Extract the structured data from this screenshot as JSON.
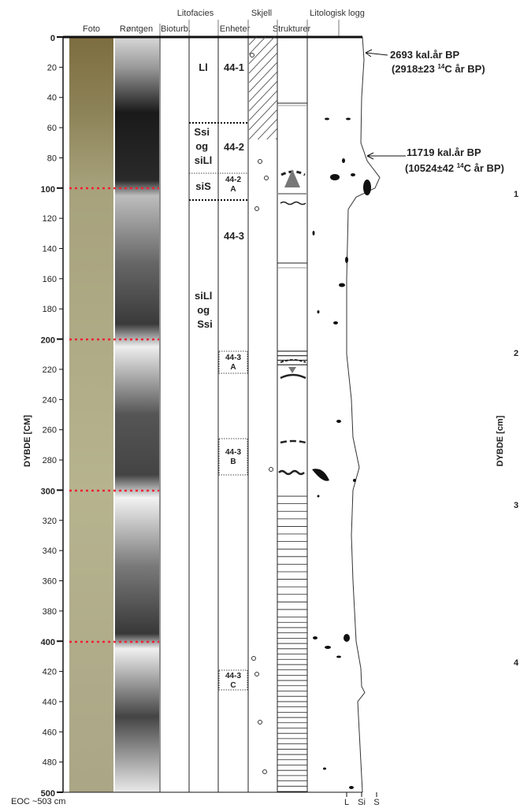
{
  "headers": {
    "top": [
      "Litofacies",
      "Skjell",
      "Litologisk logg"
    ],
    "bottom": [
      "Foto",
      "Røntgen",
      "Bioturb.",
      "Enheter",
      "Strukturer"
    ]
  },
  "depth_axis": {
    "label": "DYBDE [CM]",
    "ticks": [
      0,
      20,
      40,
      60,
      80,
      100,
      120,
      140,
      160,
      180,
      200,
      220,
      240,
      260,
      280,
      300,
      320,
      340,
      360,
      380,
      400,
      420,
      440,
      460,
      480,
      500
    ]
  },
  "lithofacies": [
    {
      "lines": [
        "Ll"
      ]
    },
    {
      "lines": [
        "Ssi",
        "og",
        "siLl"
      ]
    },
    {
      "lines": [
        "siS"
      ]
    },
    {
      "lines": [
        "siLl",
        "og",
        "Ssi"
      ]
    }
  ],
  "units": [
    {
      "lines": [
        "44-1"
      ]
    },
    {
      "lines": [
        "44-2"
      ]
    },
    {
      "lines": [
        "44-2",
        "A"
      ]
    },
    {
      "lines": [
        "44-3"
      ]
    },
    {
      "lines": [
        "44-3",
        "A"
      ]
    },
    {
      "lines": [
        "44-3",
        "B"
      ]
    },
    {
      "lines": [
        "44-3",
        "C"
      ]
    }
  ],
  "dates": [
    {
      "calibrated": "2693 kal.år BP",
      "radiocarbon": {
        "before": "(2918±23",
        "superscript": "14",
        "after": "C år BP)"
      }
    },
    {
      "calibrated": "11719 kal.år BP",
      "radiocarbon": {
        "before": "(10524±42",
        "superscript": "14",
        "after": "C år BP)"
      }
    }
  ],
  "footer": {
    "eoc": "EOC ~503 cm",
    "grain_sizes": [
      "L",
      "Si",
      "S"
    ]
  },
  "right_panel": {
    "label": "DYBDE [cm]",
    "numbers": [
      "1",
      "2",
      "3",
      "4"
    ]
  }
}
